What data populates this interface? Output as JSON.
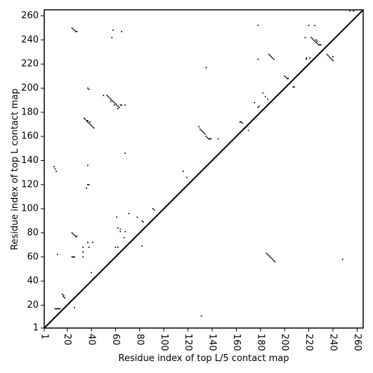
{
  "chart_data": {
    "type": "scatter",
    "xlabel": "Residue index of top L/5 contact map",
    "ylabel": "Residue index of top L contact map",
    "xlim": [
      1,
      265
    ],
    "ylim": [
      1,
      265
    ],
    "xticks": [
      1,
      20,
      40,
      60,
      80,
      100,
      120,
      140,
      160,
      180,
      200,
      220,
      240,
      260
    ],
    "yticks": [
      1,
      20,
      40,
      60,
      80,
      100,
      120,
      140,
      160,
      180,
      200,
      220,
      240,
      260
    ],
    "diagonal": true,
    "color": "#000000",
    "x": [
      24,
      25,
      26,
      27,
      28,
      57,
      58,
      65,
      178,
      220,
      225,
      254,
      257,
      222,
      223,
      224,
      225,
      226,
      227,
      228,
      229,
      230,
      226,
      227,
      217,
      218,
      218,
      221,
      235,
      236,
      237,
      238,
      239,
      240,
      240,
      187,
      188,
      189,
      190,
      191,
      178,
      200,
      201,
      202,
      203,
      207,
      208,
      135,
      37,
      38,
      50,
      53,
      54,
      55,
      56,
      57,
      58,
      59,
      60,
      61,
      62,
      63,
      64,
      65,
      68,
      56,
      59,
      62,
      175,
      178,
      179,
      182,
      184,
      186,
      34,
      35,
      36,
      37,
      38,
      39,
      40,
      41,
      42,
      37,
      39,
      163,
      164,
      165,
      170,
      129,
      130,
      131,
      132,
      133,
      134,
      135,
      136,
      137,
      138,
      139,
      145,
      68,
      37,
      9,
      10,
      11,
      116,
      119,
      37,
      38,
      36,
      71,
      78,
      61,
      82,
      83,
      91,
      92,
      62,
      64,
      64,
      68,
      24,
      25,
      26,
      27,
      28,
      67,
      37,
      41,
      38,
      33,
      60,
      62,
      82,
      33,
      33,
      12,
      24,
      25,
      26,
      185,
      186,
      187,
      188,
      189,
      190,
      191,
      192,
      248,
      40,
      16,
      17,
      17,
      18,
      10,
      11,
      12,
      13,
      14,
      26,
      131
    ],
    "y": [
      250,
      249,
      248,
      247,
      247,
      242,
      248,
      247,
      252,
      252,
      252,
      264,
      264,
      242,
      241,
      240,
      239,
      238,
      237,
      236,
      236,
      236,
      240,
      239,
      242,
      225,
      224,
      225,
      228,
      227,
      226,
      225,
      224,
      223,
      226,
      228,
      227,
      226,
      225,
      224,
      224,
      210,
      209,
      208,
      208,
      201,
      201,
      217,
      200,
      199,
      194,
      194,
      193,
      192,
      191,
      190,
      189,
      188,
      187,
      186,
      185,
      184,
      186,
      186,
      186,
      189,
      186,
      183,
      188,
      184,
      185,
      196,
      193,
      191,
      175,
      174,
      173,
      172,
      171,
      170,
      169,
      168,
      167,
      173,
      172,
      172,
      172,
      171,
      165,
      168,
      166,
      165,
      164,
      163,
      162,
      160,
      159,
      158,
      158,
      158,
      158,
      146,
      136,
      135,
      133,
      131,
      131,
      126,
      120,
      120,
      117,
      96,
      93,
      93,
      90,
      89,
      100,
      99,
      84,
      83,
      81,
      81,
      80,
      79,
      78,
      77,
      77,
      76,
      72,
      72,
      68,
      68,
      68,
      68,
      69,
      64,
      60,
      62,
      60,
      60,
      60,
      63,
      62,
      61,
      60,
      59,
      58,
      57,
      56,
      58,
      47,
      29,
      28,
      27,
      26,
      17,
      17,
      17,
      17,
      17,
      18,
      11
    ]
  }
}
